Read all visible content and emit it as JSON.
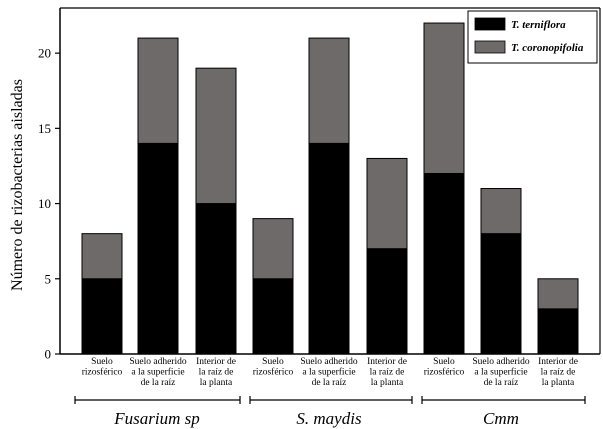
{
  "chart_data": {
    "type": "bar",
    "stacked": true,
    "ylabel": "Número de rizobacterias aisladas",
    "ylim": [
      0,
      23
    ],
    "yticks": [
      0,
      5,
      10,
      15,
      20
    ],
    "grid": false,
    "legend_position": "top-right",
    "categories": [
      [
        "Suelo",
        "rizosférico"
      ],
      [
        "Suelo adherido",
        "a la superficie",
        "de la raíz"
      ],
      [
        "Interior de",
        "la raíz de",
        "la planta"
      ],
      [
        "Suelo",
        "rizosférico"
      ],
      [
        "Suelo adherido",
        "a la superficie",
        "de la raíz"
      ],
      [
        "Interior de",
        "la raíz de",
        "la planta"
      ],
      [
        "Suelo",
        "rizosférico"
      ],
      [
        "Suelo adherido",
        "a la superficie",
        "de la raíz"
      ],
      [
        "Interior de",
        "la raíz de",
        "la planta"
      ]
    ],
    "groups": [
      {
        "name": "Fusarium sp",
        "categories": 3
      },
      {
        "name": "S. maydis",
        "categories": 3
      },
      {
        "name": "Cmm",
        "categories": 3
      }
    ],
    "series": [
      {
        "name": "T. terniflora",
        "color": "#000000",
        "values": [
          5,
          14,
          10,
          5,
          14,
          7,
          12,
          8,
          3
        ]
      },
      {
        "name": "T. coronopifolia",
        "color": "#6e6a6a",
        "values": [
          3,
          7,
          9,
          4,
          7,
          6,
          10,
          3,
          2
        ]
      }
    ]
  }
}
